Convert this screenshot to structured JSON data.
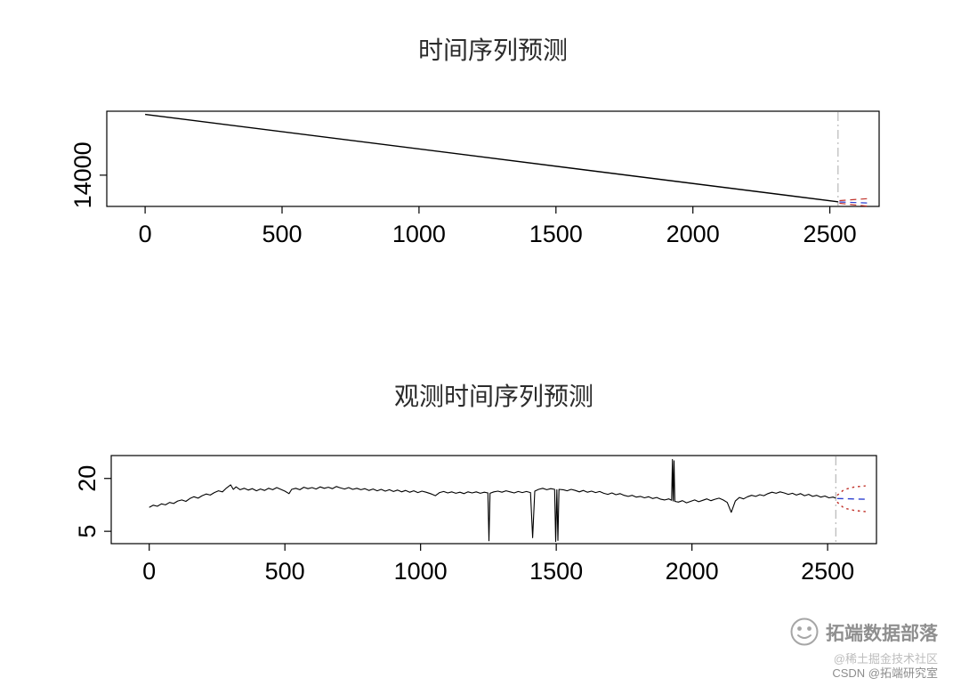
{
  "watermark": {
    "brand": "拓端数据部落",
    "community": "@稀土掘金技术社区",
    "csdn": "CSDN @拓端研究室"
  },
  "chart_data": [
    {
      "type": "line",
      "title": "时间序列预测",
      "xlabel": "",
      "ylabel": "",
      "x_ticks": [
        0,
        500,
        1000,
        1500,
        2000,
        2500
      ],
      "y_ticks": [
        14000
      ],
      "xlim": [
        -140,
        2680
      ],
      "ylim": [
        13560,
        14900
      ],
      "grid": false,
      "legend": "none",
      "vline": {
        "x": 2530,
        "color": "#aaaaaa",
        "style": "dashdot"
      },
      "series": [
        {
          "name": "observed",
          "color": "#000000",
          "style": "solid",
          "width": 1.4,
          "points": [
            [
              0,
              14855
            ],
            [
              2530,
              13625
            ]
          ]
        },
        {
          "name": "forecast-mean",
          "color": "#2c3fd0",
          "style": "dashed",
          "width": 1.2,
          "points": [
            [
              2535,
              13622
            ],
            [
              2640,
              13608
            ]
          ]
        },
        {
          "name": "forecast-upper",
          "color": "#c03028",
          "style": "dashed",
          "width": 1.2,
          "points": [
            [
              2535,
              13642
            ],
            [
              2640,
              13670
            ]
          ]
        },
        {
          "name": "forecast-lower",
          "color": "#c03028",
          "style": "dashed",
          "width": 1.2,
          "points": [
            [
              2535,
              13604
            ],
            [
              2640,
              13562
            ]
          ]
        }
      ]
    },
    {
      "type": "line",
      "title": "观测时间序列预测",
      "xlabel": "",
      "ylabel": "",
      "x_ticks": [
        0,
        500,
        1000,
        1500,
        2000,
        2500
      ],
      "y_ticks": [
        5,
        20
      ],
      "xlim": [
        -140,
        2680
      ],
      "ylim": [
        1.5,
        26.5
      ],
      "grid": false,
      "legend": "none",
      "vline": {
        "x": 2530,
        "color": "#aaaaaa",
        "style": "dashdot"
      },
      "series": [
        {
          "name": "observed",
          "color": "#000000",
          "style": "solid",
          "width": 1.1,
          "points": [
            [
              0,
              11.8
            ],
            [
              15,
              12.4
            ],
            [
              30,
              12.1
            ],
            [
              45,
              12.8
            ],
            [
              60,
              12.5
            ],
            [
              75,
              13.2
            ],
            [
              90,
              12.9
            ],
            [
              105,
              13.6
            ],
            [
              120,
              13.9
            ],
            [
              135,
              13.5
            ],
            [
              150,
              14.3
            ],
            [
              165,
              14.8
            ],
            [
              180,
              14.4
            ],
            [
              195,
              15.1
            ],
            [
              210,
              15.6
            ],
            [
              225,
              15.3
            ],
            [
              240,
              16.0
            ],
            [
              255,
              16.5
            ],
            [
              270,
              16.2
            ],
            [
              285,
              17.3
            ],
            [
              300,
              18.2
            ],
            [
              310,
              16.9
            ],
            [
              320,
              17.6
            ],
            [
              335,
              16.8
            ],
            [
              350,
              17.2
            ],
            [
              365,
              16.7
            ],
            [
              380,
              17.1
            ],
            [
              395,
              16.5
            ],
            [
              410,
              17.0
            ],
            [
              425,
              16.6
            ],
            [
              440,
              17.2
            ],
            [
              455,
              16.8
            ],
            [
              470,
              17.4
            ],
            [
              485,
              16.9
            ],
            [
              500,
              16.4
            ],
            [
              515,
              15.7
            ],
            [
              525,
              16.9
            ],
            [
              540,
              17.2
            ],
            [
              555,
              16.8
            ],
            [
              570,
              17.5
            ],
            [
              585,
              17.1
            ],
            [
              600,
              17.4
            ],
            [
              615,
              17.0
            ],
            [
              630,
              17.6
            ],
            [
              645,
              17.2
            ],
            [
              660,
              17.5
            ],
            [
              675,
              17.1
            ],
            [
              690,
              17.7
            ],
            [
              705,
              17.3
            ],
            [
              720,
              17.0
            ],
            [
              735,
              17.4
            ],
            [
              750,
              16.9
            ],
            [
              765,
              17.2
            ],
            [
              780,
              16.8
            ],
            [
              795,
              17.1
            ],
            [
              810,
              16.6
            ],
            [
              825,
              17.0
            ],
            [
              840,
              16.5
            ],
            [
              855,
              16.9
            ],
            [
              870,
              16.4
            ],
            [
              885,
              16.8
            ],
            [
              900,
              16.3
            ],
            [
              915,
              16.7
            ],
            [
              930,
              16.2
            ],
            [
              945,
              16.6
            ],
            [
              960,
              16.1
            ],
            [
              975,
              16.5
            ],
            [
              990,
              16.0
            ],
            [
              1005,
              16.4
            ],
            [
              1020,
              16.1
            ],
            [
              1040,
              15.6
            ],
            [
              1055,
              15.1
            ],
            [
              1070,
              16.0
            ],
            [
              1085,
              16.3
            ],
            [
              1100,
              15.9
            ],
            [
              1115,
              16.2
            ],
            [
              1130,
              15.8
            ],
            [
              1145,
              16.1
            ],
            [
              1160,
              15.7
            ],
            [
              1175,
              16.2
            ],
            [
              1190,
              15.9
            ],
            [
              1205,
              16.2
            ],
            [
              1220,
              15.8
            ],
            [
              1235,
              16.1
            ],
            [
              1248,
              15.9
            ],
            [
              1252,
              2.3
            ],
            [
              1256,
              15.8
            ],
            [
              1270,
              16.2
            ],
            [
              1285,
              16.4
            ],
            [
              1300,
              16.1
            ],
            [
              1315,
              16.5
            ],
            [
              1330,
              16.2
            ],
            [
              1345,
              15.9
            ],
            [
              1360,
              16.3
            ],
            [
              1375,
              16.0
            ],
            [
              1390,
              16.3
            ],
            [
              1405,
              16.0
            ],
            [
              1413,
              3.2
            ],
            [
              1421,
              16.4
            ],
            [
              1435,
              16.9
            ],
            [
              1450,
              17.2
            ],
            [
              1465,
              16.8
            ],
            [
              1480,
              17.1
            ],
            [
              1494,
              16.9
            ],
            [
              1498,
              2.1
            ],
            [
              1502,
              16.8
            ],
            [
              1506,
              2.4
            ],
            [
              1510,
              16.9
            ],
            [
              1525,
              16.8
            ],
            [
              1540,
              16.5
            ],
            [
              1555,
              16.9
            ],
            [
              1570,
              16.6
            ],
            [
              1585,
              16.2
            ],
            [
              1600,
              16.6
            ],
            [
              1615,
              16.1
            ],
            [
              1630,
              16.4
            ],
            [
              1645,
              16.0
            ],
            [
              1660,
              16.3
            ],
            [
              1675,
              15.8
            ],
            [
              1690,
              15.5
            ],
            [
              1705,
              15.9
            ],
            [
              1720,
              15.4
            ],
            [
              1735,
              15.7
            ],
            [
              1750,
              15.2
            ],
            [
              1765,
              14.9
            ],
            [
              1780,
              15.2
            ],
            [
              1795,
              14.7
            ],
            [
              1810,
              14.9
            ],
            [
              1825,
              14.5
            ],
            [
              1840,
              14.8
            ],
            [
              1855,
              14.3
            ],
            [
              1870,
              14.6
            ],
            [
              1885,
              14.1
            ],
            [
              1900,
              13.9
            ],
            [
              1915,
              14.2
            ],
            [
              1925,
              13.8
            ],
            [
              1928,
              25.4
            ],
            [
              1931,
              13.6
            ],
            [
              1934,
              25.0
            ],
            [
              1937,
              13.5
            ],
            [
              1950,
              13.3
            ],
            [
              1965,
              13.7
            ],
            [
              1980,
              13.1
            ],
            [
              1995,
              13.5
            ],
            [
              2010,
              13.9
            ],
            [
              2025,
              13.4
            ],
            [
              2040,
              13.8
            ],
            [
              2055,
              14.2
            ],
            [
              2070,
              13.7
            ],
            [
              2085,
              14.1
            ],
            [
              2100,
              14.4
            ],
            [
              2115,
              13.9
            ],
            [
              2130,
              13.2
            ],
            [
              2145,
              10.4
            ],
            [
              2160,
              13.6
            ],
            [
              2175,
              14.6
            ],
            [
              2190,
              14.2
            ],
            [
              2205,
              14.8
            ],
            [
              2220,
              15.2
            ],
            [
              2235,
              14.9
            ],
            [
              2250,
              15.4
            ],
            [
              2265,
              15.1
            ],
            [
              2280,
              15.7
            ],
            [
              2295,
              16.1
            ],
            [
              2310,
              15.8
            ],
            [
              2325,
              16.2
            ],
            [
              2340,
              15.9
            ],
            [
              2355,
              15.5
            ],
            [
              2370,
              15.8
            ],
            [
              2385,
              15.3
            ],
            [
              2400,
              15.7
            ],
            [
              2415,
              15.1
            ],
            [
              2430,
              15.5
            ],
            [
              2445,
              14.9
            ],
            [
              2460,
              15.2
            ],
            [
              2475,
              14.7
            ],
            [
              2490,
              15.0
            ],
            [
              2505,
              14.5
            ],
            [
              2520,
              14.7
            ],
            [
              2530,
              14.4
            ]
          ]
        },
        {
          "name": "forecast-mean",
          "color": "#2c3fd0",
          "style": "dashed",
          "width": 1.4,
          "points": [
            [
              2535,
              14.3
            ],
            [
              2640,
              14.1
            ]
          ]
        },
        {
          "name": "forecast-upper",
          "color": "#c03028",
          "style": "dotted",
          "width": 1.4,
          "points": [
            [
              2535,
              15.2
            ],
            [
              2560,
              16.8
            ],
            [
              2600,
              17.6
            ],
            [
              2640,
              17.9
            ]
          ]
        },
        {
          "name": "forecast-lower",
          "color": "#c03028",
          "style": "dotted",
          "width": 1.4,
          "points": [
            [
              2535,
              13.3
            ],
            [
              2560,
              11.6
            ],
            [
              2600,
              10.9
            ],
            [
              2640,
              10.6
            ]
          ]
        }
      ]
    }
  ]
}
